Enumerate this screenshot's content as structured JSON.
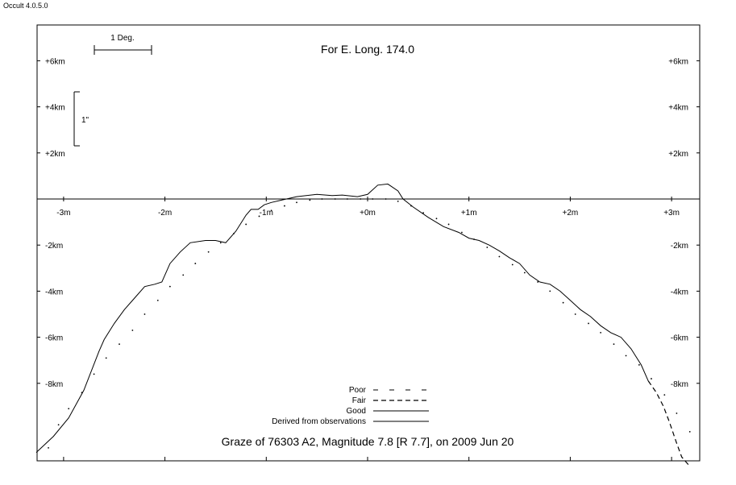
{
  "app": {
    "version": "Occult 4.0.5.0"
  },
  "chart_data": {
    "type": "line",
    "title": "For E. Long. 174.0",
    "subtitle": "Graze of  76303 A2,  Magnitude 7.8 [R 7.7],  on 2009 Jun 20",
    "x_ticks": [
      "-3m",
      "-2m",
      "-1m",
      "+0m",
      "+1m",
      "+2m",
      "+3m"
    ],
    "x_tick_values": [
      -3,
      -2,
      -1,
      0,
      1,
      2,
      3
    ],
    "xlim": [
      -3.27,
      3.27
    ],
    "y_ticks_left": [
      "+6km",
      "+4km",
      "+2km",
      "-2km",
      "-4km",
      "-6km",
      "-8km"
    ],
    "y_ticks_right": [
      "+6km",
      "+4km",
      "+2km",
      "-2km",
      "-4km",
      "-6km",
      "-8km"
    ],
    "y_tick_values": [
      6,
      4,
      2,
      -2,
      -4,
      -6,
      -8
    ],
    "ylim": [
      -11.5,
      7.7
    ],
    "scale_bars": {
      "degree_label": "1 Deg.",
      "arcsec_label": "1\""
    },
    "legend": {
      "placement": "bottom-center",
      "items": [
        {
          "label": "Poor",
          "style": "poor"
        },
        {
          "label": "Fair",
          "style": "fair"
        },
        {
          "label": "Good",
          "style": "good"
        },
        {
          "label": "Derived from observations",
          "style": "derived"
        }
      ]
    },
    "series": [
      {
        "name": "Good",
        "style": "good",
        "x": [
          -3.27,
          -3.1,
          -2.95,
          -2.8,
          -2.65,
          -2.6,
          -2.5,
          -2.4,
          -2.3,
          -2.2,
          -2.1,
          -2.03,
          -1.95,
          -1.85,
          -1.75,
          -1.6,
          -1.5,
          -1.4,
          -1.3,
          -1.2,
          -1.15,
          -1.08,
          -1.02,
          -0.95,
          -0.85,
          -0.7,
          -0.5,
          -0.35,
          -0.25,
          -0.1,
          0,
          0.1,
          0.2,
          0.3,
          0.35,
          0.45,
          0.6,
          0.75,
          0.9,
          1.0,
          1.1,
          1.2,
          1.3,
          1.4,
          1.5,
          1.6,
          1.7,
          1.8,
          1.9,
          2.0,
          2.1,
          2.2,
          2.3,
          2.4,
          2.5,
          2.6,
          2.7,
          2.77
        ],
        "y": [
          -11.0,
          -10.3,
          -9.5,
          -8.3,
          -6.6,
          -6.1,
          -5.4,
          -4.8,
          -4.3,
          -3.8,
          -3.7,
          -3.6,
          -2.8,
          -2.3,
          -1.9,
          -1.8,
          -1.8,
          -1.9,
          -1.4,
          -0.7,
          -0.45,
          -0.45,
          -0.25,
          -0.15,
          -0.05,
          0.1,
          0.2,
          0.15,
          0.17,
          0.1,
          0.2,
          0.6,
          0.65,
          0.35,
          0.0,
          -0.35,
          -0.8,
          -1.2,
          -1.45,
          -1.7,
          -1.8,
          -2.0,
          -2.25,
          -2.55,
          -2.8,
          -3.3,
          -3.6,
          -3.7,
          -4.0,
          -4.4,
          -4.8,
          -5.1,
          -5.5,
          -5.8,
          -6.0,
          -6.5,
          -7.2,
          -7.9
        ]
      },
      {
        "name": "Fair",
        "style": "fair",
        "x": [
          2.77,
          2.85,
          2.92,
          2.98,
          3.05,
          3.1,
          3.18
        ],
        "y": [
          -7.9,
          -8.4,
          -9.0,
          -9.7,
          -10.6,
          -11.2,
          -11.6
        ]
      },
      {
        "name": "Derived from observations",
        "style": "derived",
        "x": [
          -3.15,
          -3.05,
          -2.95,
          -2.82,
          -2.7,
          -2.58,
          -2.45,
          -2.32,
          -2.2,
          -2.07,
          -1.95,
          -1.82,
          -1.7,
          -1.57,
          -1.45,
          -1.32,
          -1.2,
          -1.07,
          -0.95,
          -0.82,
          -0.7,
          -0.57,
          -0.45,
          -0.32,
          -0.2,
          -0.07,
          0.05,
          0.18,
          0.3,
          0.43,
          0.55,
          0.68,
          0.8,
          0.93,
          1.05,
          1.18,
          1.3,
          1.43,
          1.55,
          1.68,
          1.8,
          1.93,
          2.05,
          2.18,
          2.3,
          2.43,
          2.55,
          2.68,
          2.8,
          2.93,
          3.05,
          3.18
        ],
        "y": [
          -10.8,
          -9.8,
          -9.1,
          -8.4,
          -7.6,
          -6.9,
          -6.3,
          -5.7,
          -5.0,
          -4.4,
          -3.8,
          -3.3,
          -2.8,
          -2.3,
          -1.9,
          -1.5,
          -1.1,
          -0.75,
          -0.5,
          -0.3,
          -0.15,
          -0.05,
          0.0,
          0.0,
          0.0,
          0.0,
          0.0,
          0.0,
          -0.1,
          -0.3,
          -0.6,
          -0.85,
          -1.1,
          -1.45,
          -1.75,
          -2.1,
          -2.5,
          -2.85,
          -3.2,
          -3.6,
          -4.0,
          -4.5,
          -5.0,
          -5.4,
          -5.8,
          -6.3,
          -6.8,
          -7.2,
          -7.8,
          -8.5,
          -9.3,
          -10.1
        ]
      }
    ]
  }
}
